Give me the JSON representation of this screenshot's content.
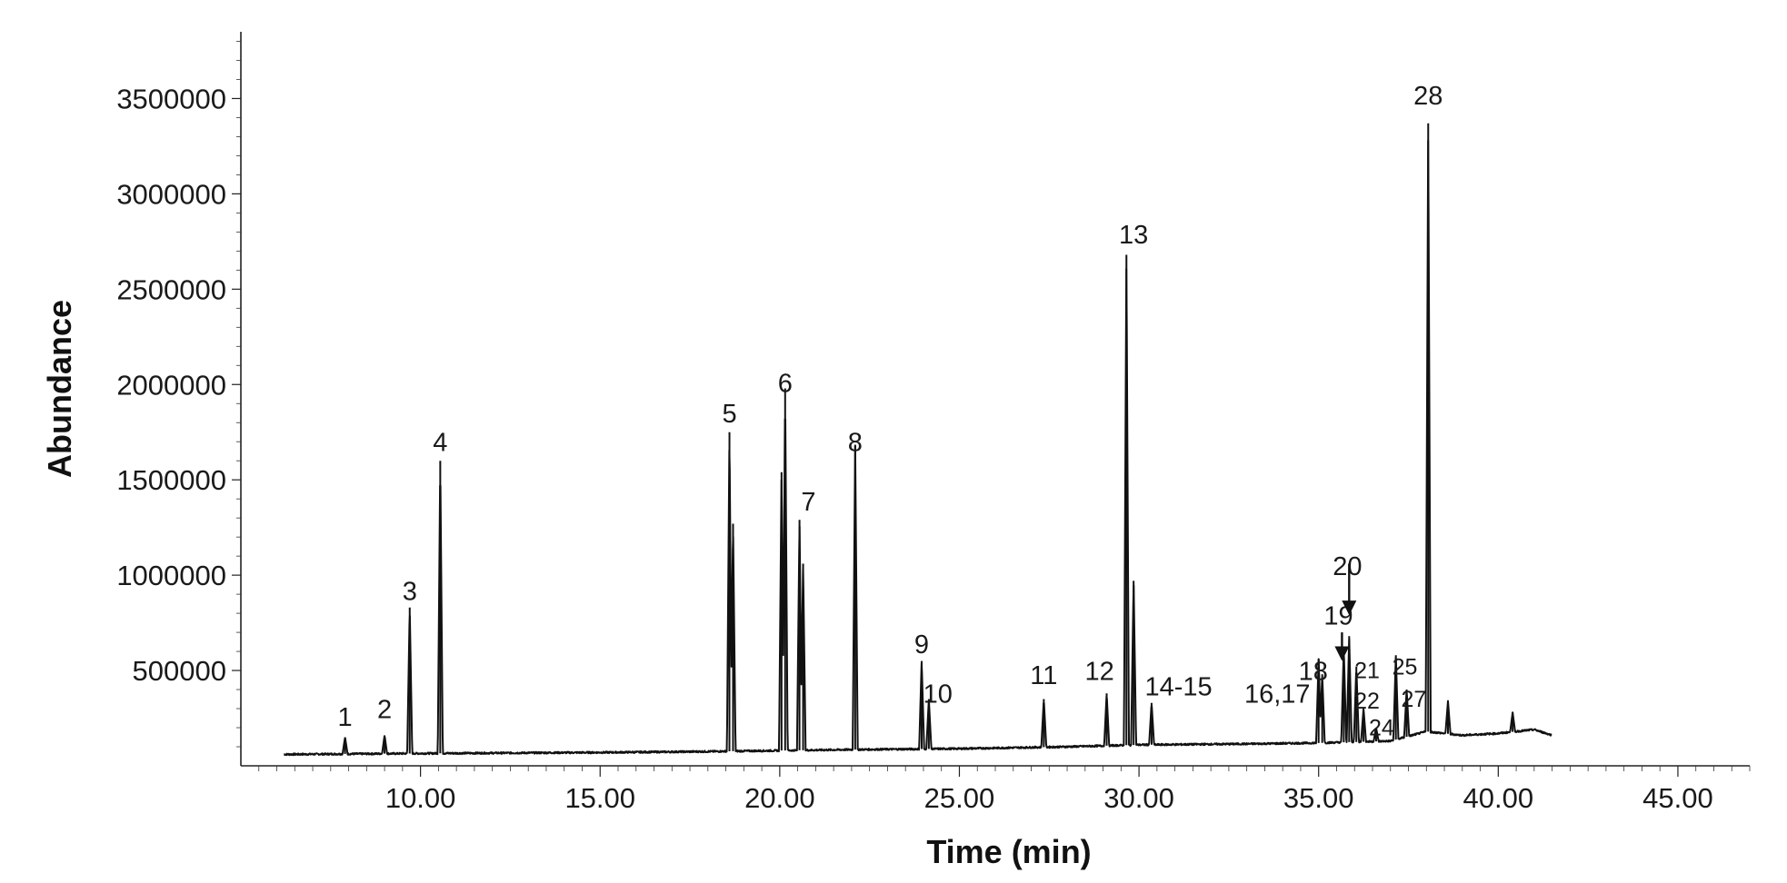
{
  "chart_data": {
    "type": "line",
    "title": "",
    "xlabel": "Time (min)",
    "ylabel": "Abundance",
    "xlim": [
      5.0,
      47.0
    ],
    "ylim": [
      0,
      3850000
    ],
    "grid": false,
    "legend": "none",
    "x_ticks": [
      "10.00",
      "15.00",
      "20.00",
      "25.00",
      "30.00",
      "35.00",
      "40.00",
      "45.00"
    ],
    "y_ticks": [
      "500000",
      "1000000",
      "1500000",
      "2000000",
      "2500000",
      "3000000",
      "3500000"
    ],
    "baseline": [
      [
        6.2,
        60000
      ],
      [
        10.0,
        65000
      ],
      [
        15.0,
        70000
      ],
      [
        18.0,
        75000
      ],
      [
        20.0,
        80000
      ],
      [
        22.0,
        85000
      ],
      [
        25.0,
        90000
      ],
      [
        28.0,
        100000
      ],
      [
        30.0,
        110000
      ],
      [
        33.0,
        115000
      ],
      [
        35.0,
        120000
      ],
      [
        37.0,
        130000
      ],
      [
        38.0,
        180000
      ],
      [
        39.0,
        160000
      ],
      [
        40.0,
        170000
      ],
      [
        41.0,
        190000
      ],
      [
        41.5,
        160000
      ]
    ],
    "series": [
      {
        "peaks": [
          {
            "label": "1",
            "x": 7.9,
            "y": 150000
          },
          {
            "label": "2",
            "x": 9.0,
            "y": 160000
          },
          {
            "label": "3",
            "x": 9.7,
            "y": 830000
          },
          {
            "label": "4",
            "x": 10.55,
            "y": 1600000
          },
          {
            "label": "5",
            "x": 18.6,
            "y": 1750000
          },
          {
            "label": "",
            "x": 18.7,
            "y": 1270000
          },
          {
            "label": "6",
            "x": 20.15,
            "y": 1980000
          },
          {
            "label": "",
            "x": 20.05,
            "y": 1540000
          },
          {
            "label": "7",
            "x": 20.55,
            "y": 1290000
          },
          {
            "label": "",
            "x": 20.65,
            "y": 1060000
          },
          {
            "label": "8",
            "x": 22.1,
            "y": 1680000
          },
          {
            "label": "9",
            "x": 23.95,
            "y": 550000
          },
          {
            "label": "10",
            "x": 24.15,
            "y": 350000
          },
          {
            "label": "11",
            "x": 27.35,
            "y": 350000
          },
          {
            "label": "12",
            "x": 29.1,
            "y": 380000
          },
          {
            "label": "13",
            "x": 29.65,
            "y": 2680000
          },
          {
            "label": "",
            "x": 29.85,
            "y": 970000
          },
          {
            "label": "14-15",
            "x": 30.35,
            "y": 330000
          },
          {
            "label": "16,17",
            "x": 35.0,
            "y": 560000
          },
          {
            "label": "18",
            "x": 35.1,
            "y": 480000
          },
          {
            "label": "19",
            "x": 35.7,
            "y": 620000
          },
          {
            "label": "20",
            "x": 35.85,
            "y": 680000
          },
          {
            "label": "21",
            "x": 36.05,
            "y": 520000
          },
          {
            "label": "22",
            "x": 36.25,
            "y": 300000
          },
          {
            "label": "24",
            "x": 36.6,
            "y": 200000
          },
          {
            "label": "25",
            "x": 37.15,
            "y": 580000
          },
          {
            "label": "27",
            "x": 37.45,
            "y": 400000
          },
          {
            "label": "28",
            "x": 38.05,
            "y": 3370000
          },
          {
            "label": "",
            "x": 38.6,
            "y": 340000
          },
          {
            "label": "",
            "x": 40.4,
            "y": 280000
          }
        ]
      }
    ],
    "annotations": [
      {
        "label": "1",
        "x": 7.9,
        "y": 210000
      },
      {
        "label": "2",
        "x": 9.0,
        "y": 250000
      },
      {
        "label": "3",
        "x": 9.7,
        "y": 870000
      },
      {
        "label": "4",
        "x": 10.55,
        "y": 1650000
      },
      {
        "label": "5",
        "x": 18.6,
        "y": 1800000
      },
      {
        "label": "6",
        "x": 20.15,
        "y": 1960000
      },
      {
        "label": "7",
        "x": 20.8,
        "y": 1340000
      },
      {
        "label": "8",
        "x": 22.1,
        "y": 1650000
      },
      {
        "label": "9",
        "x": 23.95,
        "y": 590000
      },
      {
        "label": "10",
        "x": 24.4,
        "y": 330000
      },
      {
        "label": "11",
        "x": 27.35,
        "y": 430000
      },
      {
        "label": "12",
        "x": 28.9,
        "y": 450000
      },
      {
        "label": "13",
        "x": 29.85,
        "y": 2740000
      },
      {
        "label": "14-15",
        "x": 31.1,
        "y": 370000
      },
      {
        "label": "16,17",
        "x": 33.85,
        "y": 330000
      },
      {
        "label": "18",
        "x": 34.85,
        "y": 450000
      },
      {
        "label": "19",
        "x": 35.55,
        "y": 740000
      },
      {
        "label": "20",
        "x": 35.8,
        "y": 1000000
      },
      {
        "label": "21",
        "x": 36.35,
        "y": 460000
      },
      {
        "label": "22",
        "x": 36.35,
        "y": 300000
      },
      {
        "label": "24",
        "x": 36.75,
        "y": 160000
      },
      {
        "label": "25",
        "x": 37.4,
        "y": 480000
      },
      {
        "label": "27",
        "x": 37.65,
        "y": 310000
      },
      {
        "label": "28",
        "x": 38.05,
        "y": 3470000
      }
    ],
    "arrows": [
      {
        "from": [
          35.85,
          1060000
        ],
        "to": [
          35.85,
          800000
        ]
      },
      {
        "from": [
          35.65,
          700000
        ],
        "to": [
          35.65,
          560000
        ]
      }
    ]
  }
}
